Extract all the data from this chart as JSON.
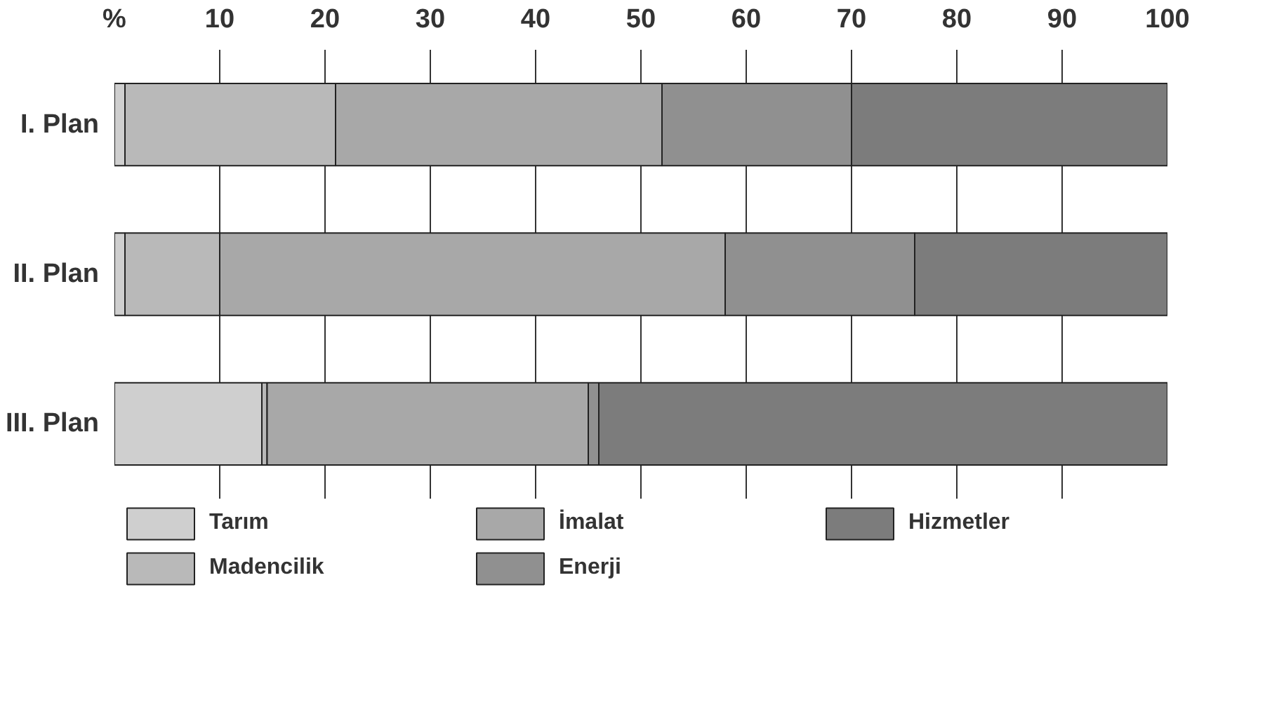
{
  "chart_data": {
    "type": "bar",
    "orientation": "horizontal",
    "stacked": true,
    "categories": [
      "I. Plan",
      "II. Plan",
      "III. Plan"
    ],
    "series": [
      {
        "name": "Tarım",
        "color": "#cfcfcf",
        "values": [
          1,
          1,
          14
        ]
      },
      {
        "name": "Madencilik",
        "color": "#b9b9b9",
        "values": [
          20,
          9,
          0.5
        ]
      },
      {
        "name": "İmalat",
        "color": "#a8a8a8",
        "values": [
          31,
          48,
          30.5
        ]
      },
      {
        "name": "Enerji",
        "color": "#909090",
        "values": [
          18,
          18,
          1
        ]
      },
      {
        "name": "Hizmetler",
        "color": "#7c7c7c",
        "values": [
          30,
          24,
          54
        ]
      }
    ],
    "xlim": [
      0,
      100
    ],
    "xticks": [
      {
        "value": 0,
        "label": "%"
      },
      10,
      20,
      30,
      40,
      50,
      60,
      70,
      80,
      90,
      100
    ],
    "grid": "x",
    "legend": "bottom"
  }
}
